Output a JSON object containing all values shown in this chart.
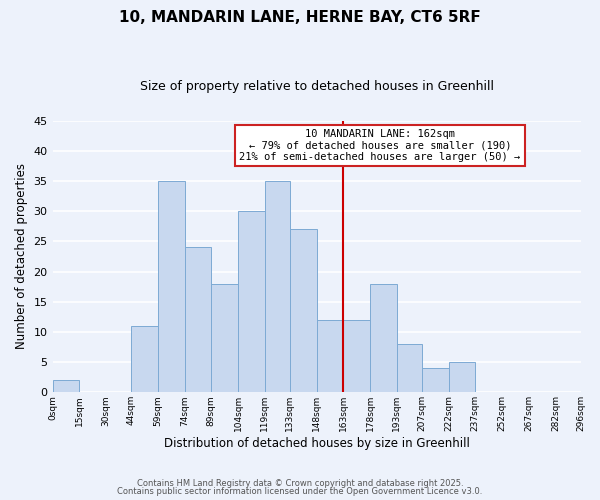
{
  "title": "10, MANDARIN LANE, HERNE BAY, CT6 5RF",
  "subtitle": "Size of property relative to detached houses in Greenhill",
  "xlabel": "Distribution of detached houses by size in Greenhill",
  "ylabel": "Number of detached properties",
  "bar_left_edges": [
    0,
    15,
    30,
    44,
    59,
    74,
    89,
    104,
    119,
    133,
    148,
    163,
    178,
    193,
    207,
    222,
    237,
    252,
    267,
    282
  ],
  "bar_widths": [
    15,
    15,
    14,
    15,
    15,
    15,
    15,
    15,
    14,
    15,
    15,
    15,
    15,
    14,
    15,
    15,
    15,
    15,
    15,
    14
  ],
  "bar_heights": [
    2,
    0,
    0,
    11,
    35,
    24,
    18,
    30,
    35,
    27,
    12,
    12,
    18,
    8,
    4,
    5,
    0,
    0,
    0,
    0
  ],
  "bar_color": "#c8d8ef",
  "bar_edgecolor": "#7daad4",
  "vline_x": 163,
  "vline_color": "#cc0000",
  "ylim": [
    0,
    45
  ],
  "yticks": [
    0,
    5,
    10,
    15,
    20,
    25,
    30,
    35,
    40,
    45
  ],
  "xlim": [
    0,
    296
  ],
  "xtick_labels": [
    "0sqm",
    "15sqm",
    "30sqm",
    "44sqm",
    "59sqm",
    "74sqm",
    "89sqm",
    "104sqm",
    "119sqm",
    "133sqm",
    "148sqm",
    "163sqm",
    "178sqm",
    "193sqm",
    "207sqm",
    "222sqm",
    "237sqm",
    "252sqm",
    "267sqm",
    "282sqm",
    "296sqm"
  ],
  "xtick_positions": [
    0,
    15,
    30,
    44,
    59,
    74,
    89,
    104,
    119,
    133,
    148,
    163,
    178,
    193,
    207,
    222,
    237,
    252,
    267,
    282,
    296
  ],
  "annotation_title": "10 MANDARIN LANE: 162sqm",
  "annotation_line1": "← 79% of detached houses are smaller (190)",
  "annotation_line2": "21% of semi-detached houses are larger (50) →",
  "footer1": "Contains HM Land Registry data © Crown copyright and database right 2025.",
  "footer2": "Contains public sector information licensed under the Open Government Licence v3.0.",
  "background_color": "#edf2fb",
  "grid_color": "#ffffff",
  "fig_width": 6.0,
  "fig_height": 5.0,
  "dpi": 100
}
